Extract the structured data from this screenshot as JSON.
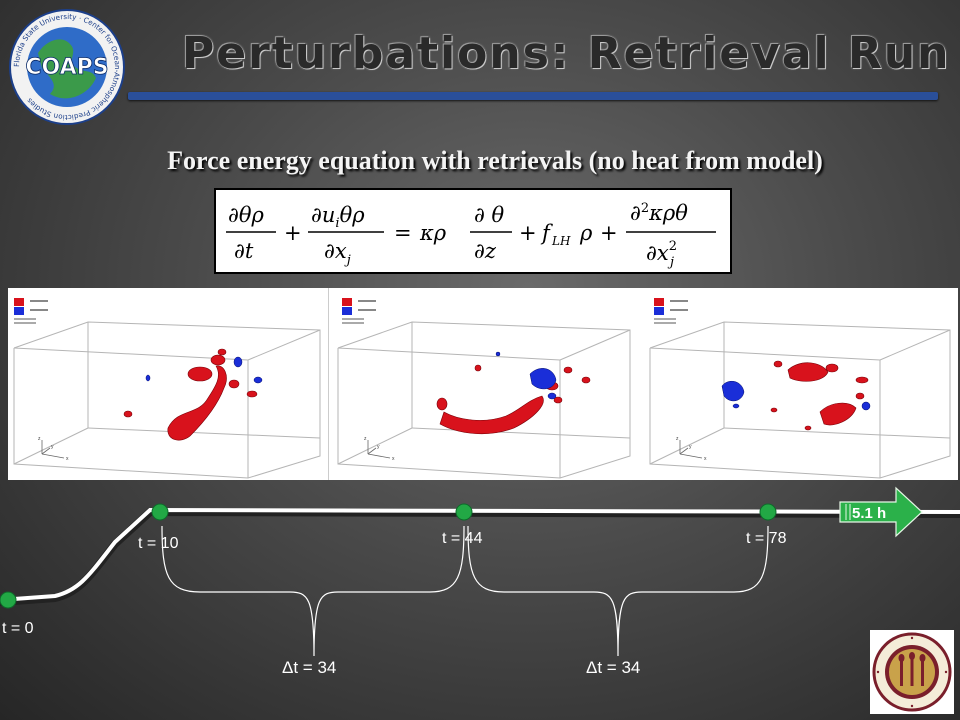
{
  "header": {
    "title": "Perturbations:  Retrieval Run",
    "logo_text": "COAPS",
    "logo_ring_text": "Florida State University · Center for Ocean-Atmospheric Prediction Studies"
  },
  "subtitle": "Force energy equation with retrievals (no heat from model)",
  "equation": {
    "plus": "+",
    "equals": "=",
    "kappa_rho": "κρ",
    "f_lh": "f",
    "f_lh_sub": "LH",
    "rho": "ρ"
  },
  "panels": [
    {
      "time": 10,
      "axis_z": "z",
      "axis_y": "y",
      "axis_x": "x"
    },
    {
      "time": 44,
      "axis_z": "z",
      "axis_y": "y",
      "axis_x": "x"
    },
    {
      "time": 78,
      "axis_z": "z",
      "axis_y": "y",
      "axis_x": "x"
    }
  ],
  "timeline": {
    "points": [
      {
        "label": "t = 0"
      },
      {
        "label": "t = 10"
      },
      {
        "label": "t = 44"
      },
      {
        "label": "t = 78"
      }
    ],
    "intervals": [
      {
        "label": "Δt = 34"
      },
      {
        "label": "Δt = 34"
      }
    ],
    "arrow_label": "5.1 h"
  },
  "colors": {
    "title_bar": "#2a4f9a",
    "node": "#22a845",
    "arrow": "#2bb14a",
    "positive_isosurface": "#d8121c",
    "negative_isosurface": "#1a2ed8",
    "seal": "#7a1f2b"
  }
}
